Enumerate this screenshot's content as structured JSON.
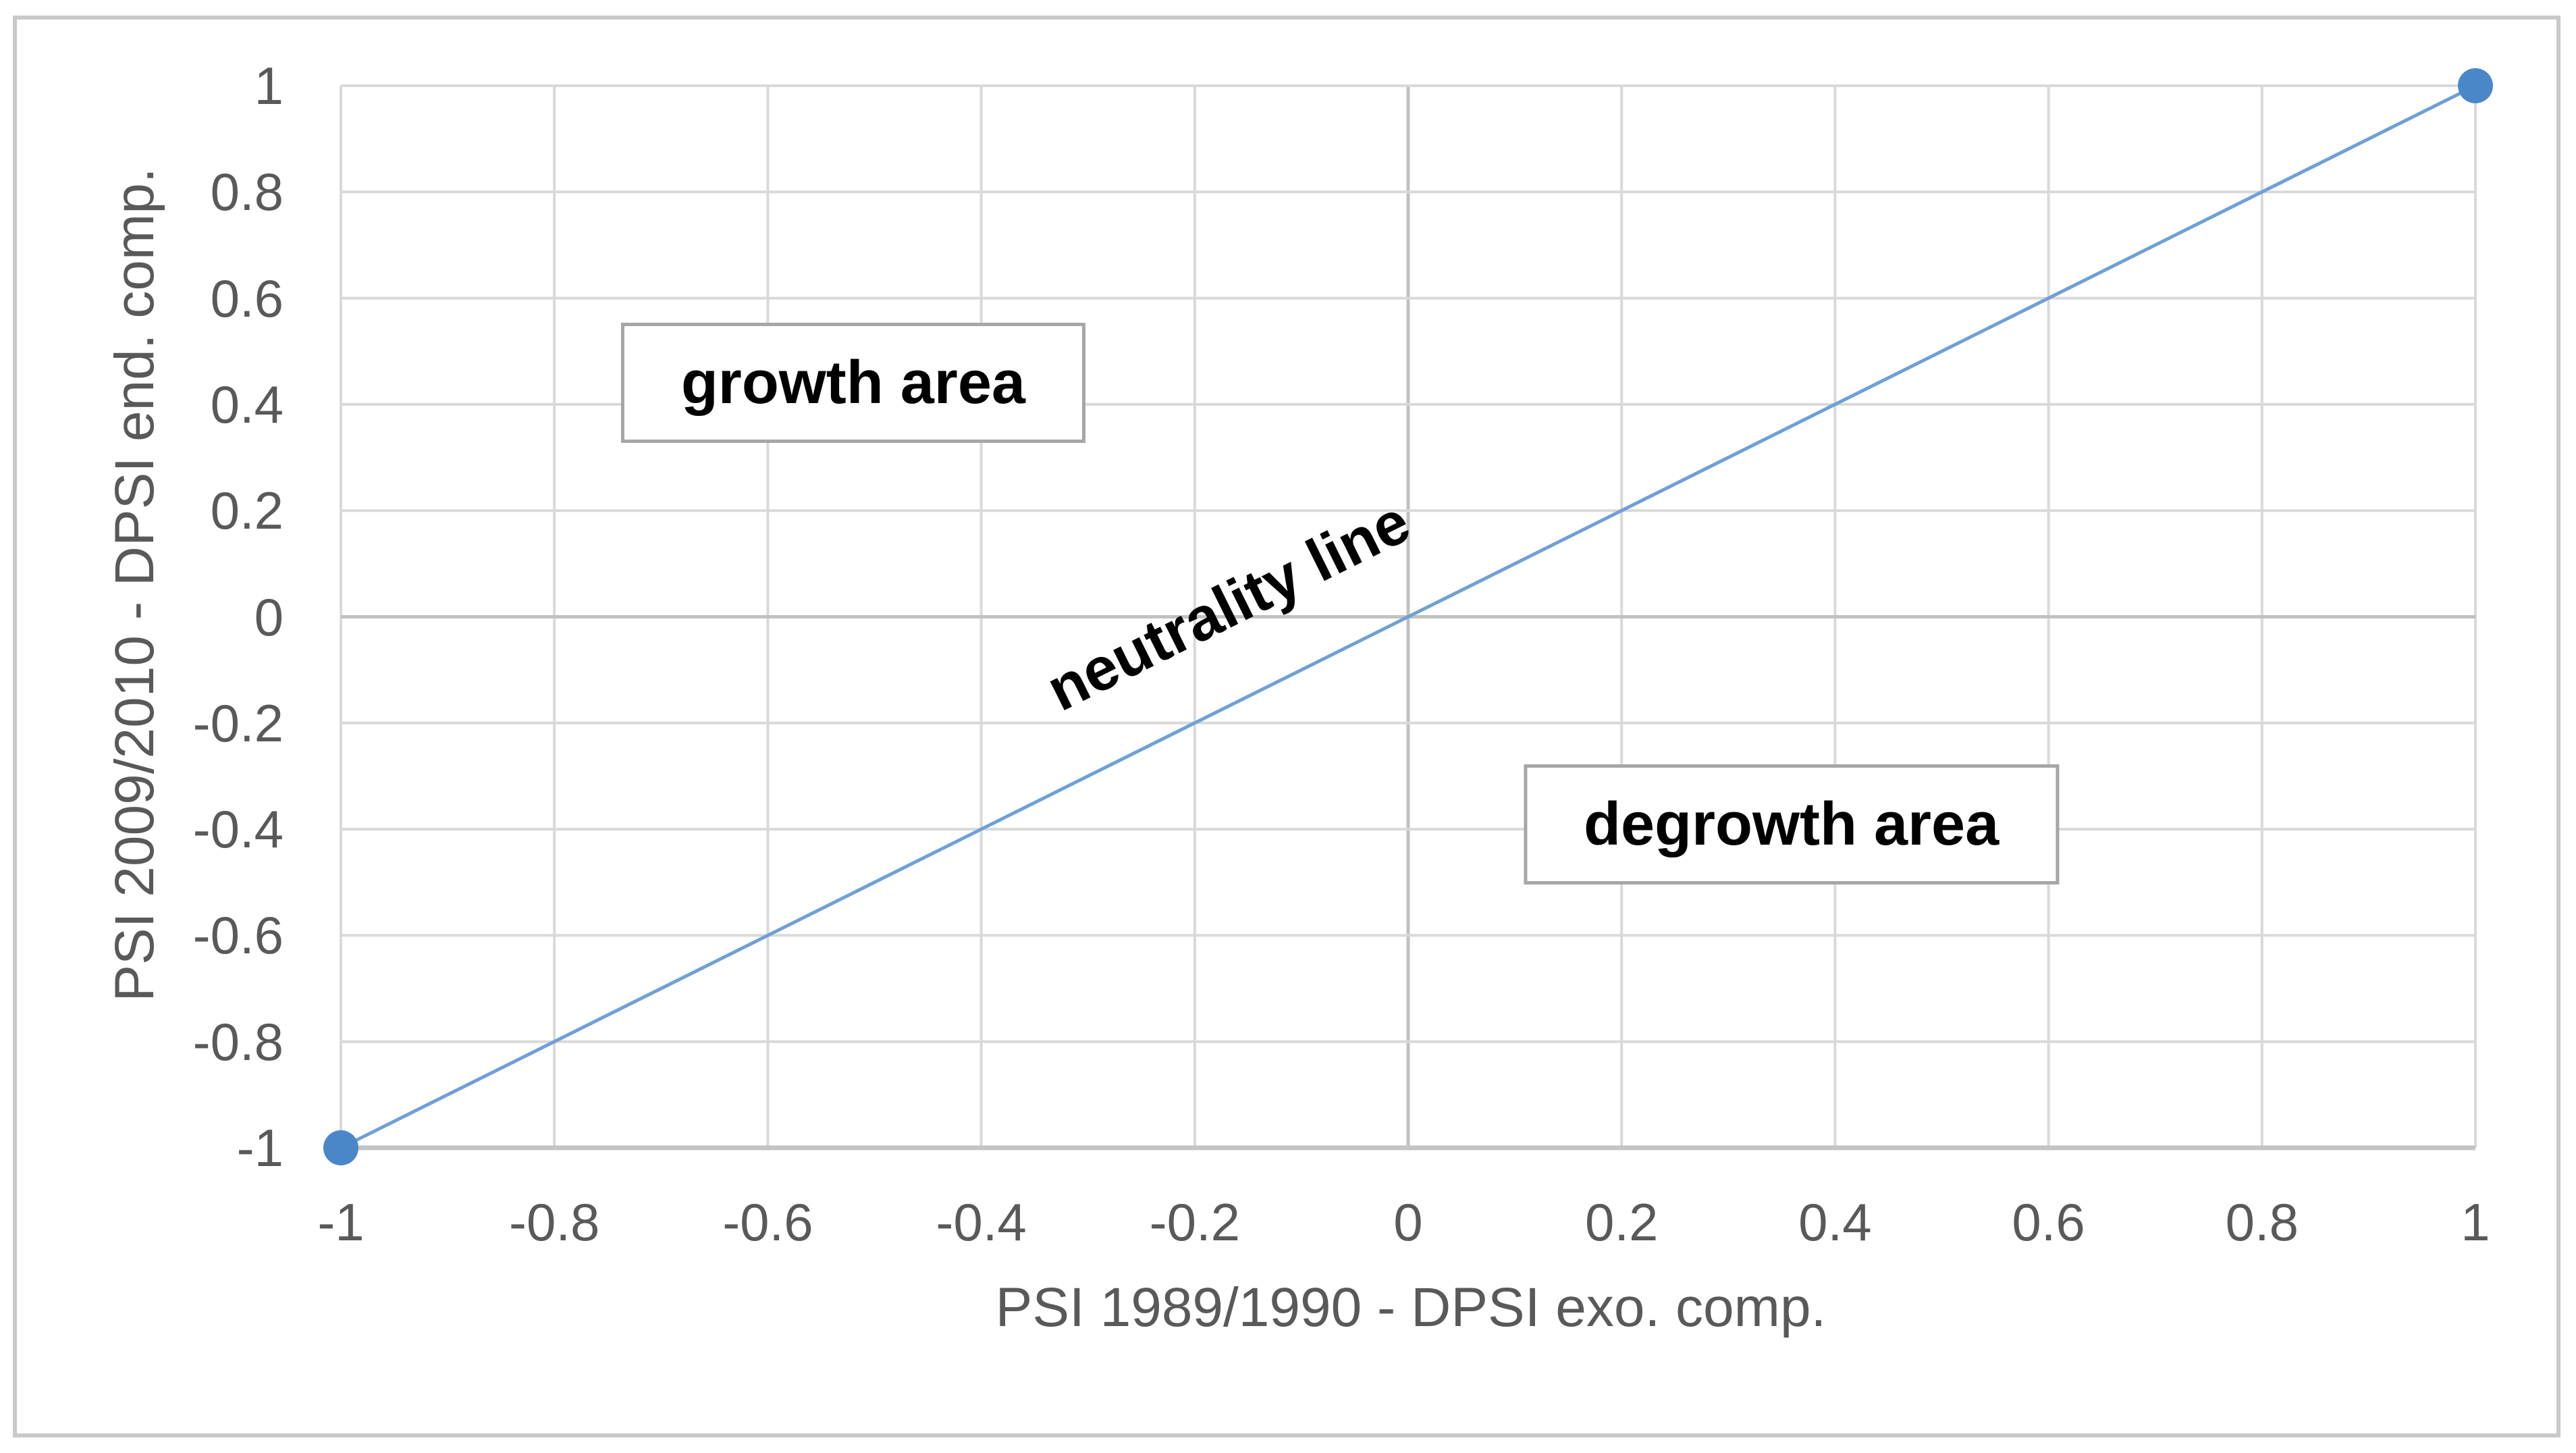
{
  "figure": {
    "background": "#ffffff",
    "outer_border_color": "#c9c9c9"
  },
  "chart_data": {
    "type": "scatter",
    "title": "",
    "xlabel": "PSI 1989/1990 - DPSI exo. comp.",
    "ylabel": "PSI 2009/2010 - DPSI end. comp.",
    "xlim": [
      -1,
      1
    ],
    "ylim": [
      -1,
      1
    ],
    "x_ticks": [
      -1,
      -0.8,
      -0.6,
      -0.4,
      -0.2,
      0,
      0.2,
      0.4,
      0.6,
      0.8,
      1
    ],
    "x_tick_labels": [
      "-1",
      "-0.8",
      "-0.6",
      "-0.4",
      "-0.2",
      "0",
      "0.2",
      "0.4",
      "0.6",
      "0.8",
      "1"
    ],
    "y_ticks": [
      1,
      0.8,
      0.6,
      0.4,
      0.2,
      0,
      -0.2,
      -0.4,
      -0.6,
      -0.8,
      -1
    ],
    "y_tick_labels": [
      "1",
      "0.8",
      "0.6",
      "0.4",
      "0.2",
      "0",
      "-0.2",
      "-0.4",
      "-0.6",
      "-0.8",
      "-1"
    ],
    "grid": true,
    "legend": "none",
    "series": [
      {
        "name": "neutrality line",
        "points": [
          {
            "x": -1,
            "y": -1
          },
          {
            "x": 1,
            "y": 1
          }
        ],
        "line_color": "#6fa0d6",
        "marker_color": "#4a87c9",
        "marker": "circle"
      }
    ],
    "annotations": [
      {
        "text": "growth area",
        "x": -0.52,
        "y": 0.44,
        "style": "box"
      },
      {
        "text": "degrowth area",
        "x": 0.359,
        "y": -0.391,
        "style": "box"
      },
      {
        "text": "neutrality line",
        "x": -0.168,
        "y": 0.02,
        "style": "rotated-along-line"
      }
    ],
    "colors": {
      "grid": "#d9d9d9",
      "zero_grid": "#c1c1c1",
      "axis_line": "#c4c4c4",
      "tick_text": "#595959"
    }
  }
}
